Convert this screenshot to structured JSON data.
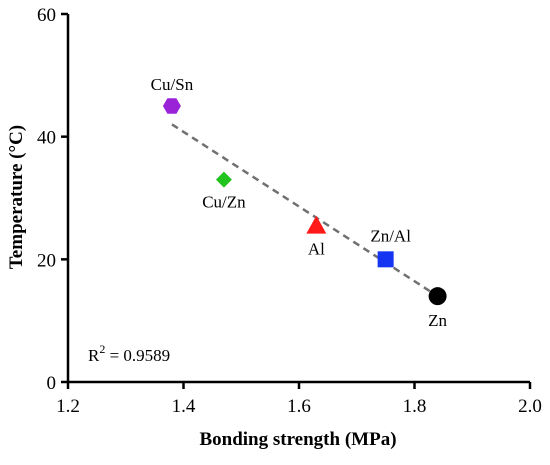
{
  "chart_data": {
    "type": "scatter",
    "title": "",
    "xlabel": "Bonding strength (MPa)",
    "ylabel": "Temperature (°C)",
    "xlim": [
      1.2,
      2.0
    ],
    "ylim": [
      0,
      60
    ],
    "xticks": [
      "1.2",
      "1.4",
      "1.6",
      "1.8",
      "2.0"
    ],
    "yticks": [
      "0",
      "20",
      "40",
      "60"
    ],
    "grid": false,
    "legend": "none",
    "points": [
      {
        "label": "Cu/Sn",
        "x": 1.38,
        "y": 45,
        "marker": "hexagon",
        "color": "#9a23d8"
      },
      {
        "label": "Cu/Zn",
        "x": 1.47,
        "y": 33,
        "marker": "diamond",
        "color": "#22c31c"
      },
      {
        "label": "Al",
        "x": 1.63,
        "y": 25.5,
        "marker": "triangle",
        "color": "#ff1a1a"
      },
      {
        "label": "Zn/Al",
        "x": 1.75,
        "y": 20,
        "marker": "square",
        "color": "#1535f2"
      },
      {
        "label": "Zn",
        "x": 1.84,
        "y": 14,
        "marker": "circle",
        "color": "#000000"
      }
    ],
    "fit_line": {
      "x": [
        1.38,
        1.84
      ],
      "y": [
        42,
        14
      ],
      "style": "dashed",
      "color": "#707070"
    },
    "annotation": {
      "r2_prefix": "R",
      "r2_sup": "2",
      "r2_suffix": " = 0.9589"
    }
  }
}
